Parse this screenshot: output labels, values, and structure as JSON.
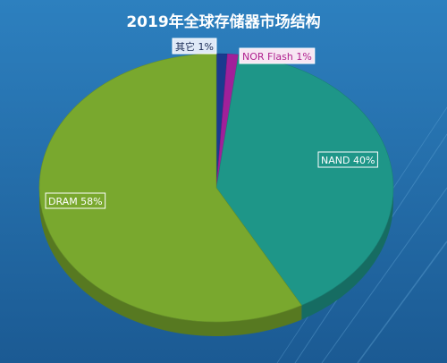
{
  "chart_data": {
    "type": "pie",
    "title": "2019年全球存储器市场结构",
    "slices": [
      {
        "label": "其它 1%",
        "name": "其它",
        "value": 1,
        "color": "#1a3a8f"
      },
      {
        "label": "NOR Flash 1%",
        "name": "NOR Flash",
        "value": 1,
        "color": "#a0209a"
      },
      {
        "label": "NAND 40%",
        "name": "NAND",
        "value": 40,
        "color": "#1e9688"
      },
      {
        "label": "DRAM 58%",
        "name": "DRAM",
        "value": 58,
        "color": "#79a82e"
      }
    ],
    "unit": "%"
  },
  "colors": {
    "background_top": "#2a7ab8",
    "background_bottom": "#1c5f99",
    "title_text": "#ffffff",
    "nor_label_text": "#b0208e"
  }
}
